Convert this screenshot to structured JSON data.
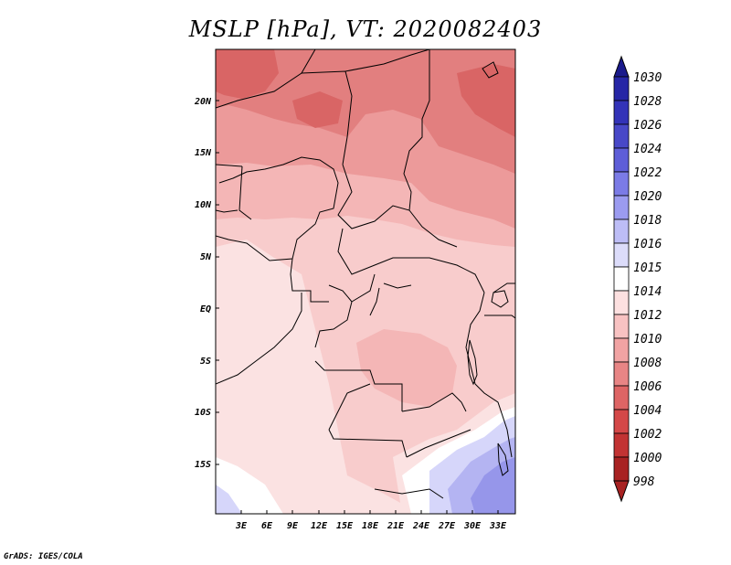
{
  "title": "MSLP [hPa], VT: 2020082403",
  "footer": "GrADS: IGES/COLA",
  "map": {
    "lat_labels": [
      "20N",
      "15N",
      "10N",
      "5N",
      "EQ",
      "5S",
      "10S",
      "15S"
    ],
    "lon_labels": [
      "3E",
      "6E",
      "9E",
      "12E",
      "15E",
      "18E",
      "21E",
      "24E",
      "27E",
      "30E",
      "33E"
    ]
  },
  "colorbar": {
    "labels": [
      "1030",
      "1028",
      "1026",
      "1024",
      "1022",
      "1020",
      "1018",
      "1016",
      "1015",
      "1014",
      "1012",
      "1010",
      "1008",
      "1006",
      "1004",
      "1002",
      "1000",
      "998"
    ],
    "colors": [
      "#1a1a8c",
      "#2626a6",
      "#3333b8",
      "#4848c8",
      "#5e5ed8",
      "#7b7be6",
      "#9b9bf0",
      "#bdbdf6",
      "#dcdcfa",
      "#ffffff",
      "#fde0e0",
      "#f8c2c2",
      "#f1a3a3",
      "#e88585",
      "#de6565",
      "#d44848",
      "#c23333",
      "#a82222"
    ]
  },
  "legend_colors": {
    "c1010": "#f4b6b6",
    "c1008": "#ec9a9a",
    "c1006": "#e27f7f",
    "c1004": "#d96565",
    "c1012": "#f8cccc",
    "c1014": "#fbe2e2",
    "c1015": "#ffffff",
    "c1016": "#d6d6fa",
    "c1018": "#b4b4f2",
    "c1020": "#9696ea"
  }
}
